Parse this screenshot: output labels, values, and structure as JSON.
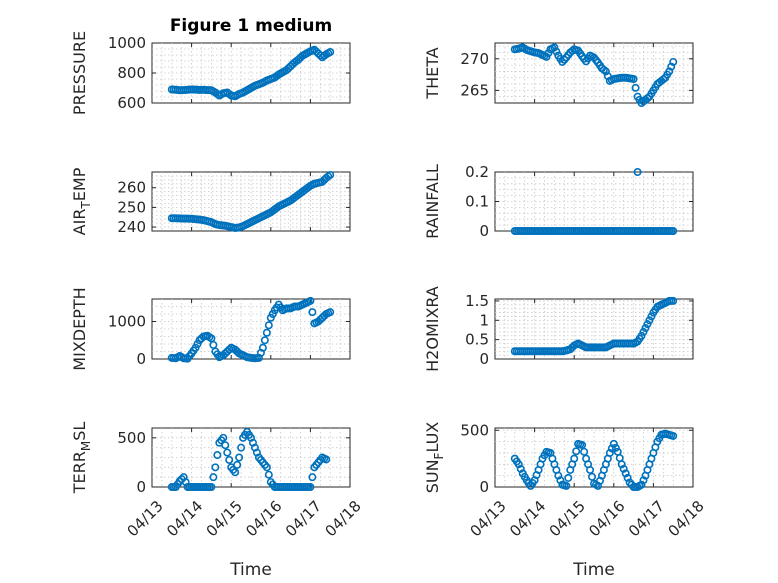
{
  "figure": {
    "title": "Figure 1 medium",
    "xlabel": "Time",
    "marker_color": "#0072BD"
  },
  "chart_data": [
    {
      "id": "pressure",
      "type": "scatter",
      "position": "row1-left",
      "ylabel": "PRESSURE",
      "ylim": [
        600,
        1000
      ],
      "yticks": [
        600,
        800,
        1000
      ],
      "xlim": [
        "04/13",
        "04/18"
      ],
      "xticks": [
        "04/13",
        "04/14",
        "04/15",
        "04/16",
        "04/17",
        "04/18"
      ],
      "grid": true,
      "show_xticklabels": false,
      "x": [
        13.5,
        13.6,
        13.7,
        13.8,
        13.9,
        14.0,
        14.1,
        14.2,
        14.3,
        14.4,
        14.5,
        14.6,
        14.7,
        14.8,
        14.9,
        15.0,
        15.1,
        15.2,
        15.3,
        15.4,
        15.5,
        15.6,
        15.7,
        15.8,
        15.9,
        16.0,
        16.1,
        16.2,
        16.3,
        16.4,
        16.5,
        16.6,
        16.7,
        16.8,
        16.9,
        17.0,
        17.1,
        17.2,
        17.3,
        17.4,
        17.5
      ],
      "y": [
        690,
        688,
        685,
        686,
        688,
        690,
        689,
        687,
        688,
        686,
        685,
        670,
        650,
        665,
        670,
        650,
        645,
        660,
        670,
        685,
        700,
        715,
        725,
        735,
        750,
        760,
        770,
        790,
        805,
        820,
        845,
        870,
        890,
        915,
        930,
        945,
        955,
        930,
        905,
        925,
        940
      ]
    },
    {
      "id": "theta",
      "type": "scatter",
      "position": "row1-right",
      "ylabel": "THETA",
      "ylim": [
        263,
        272.5
      ],
      "yticks": [
        265,
        270
      ],
      "xlim": [
        "04/13",
        "04/18"
      ],
      "xticks": [
        "04/13",
        "04/14",
        "04/15",
        "04/16",
        "04/17",
        "04/18"
      ],
      "grid": true,
      "show_xticklabels": false,
      "x": [
        13.5,
        13.6,
        13.7,
        13.8,
        13.9,
        14.0,
        14.1,
        14.2,
        14.3,
        14.4,
        14.5,
        14.6,
        14.7,
        14.8,
        14.9,
        15.0,
        15.1,
        15.2,
        15.3,
        15.4,
        15.5,
        15.6,
        15.7,
        15.8,
        15.9,
        16.0,
        16.1,
        16.2,
        16.3,
        16.4,
        16.5,
        16.6,
        16.7,
        16.8,
        16.9,
        17.0,
        17.1,
        17.2,
        17.3,
        17.4,
        17.5
      ],
      "y": [
        271.5,
        271.6,
        271.8,
        271.4,
        271.2,
        271.0,
        270.9,
        270.6,
        270.3,
        271.5,
        271.8,
        270.5,
        269.5,
        270.2,
        271.0,
        271.5,
        271.3,
        270.4,
        269.6,
        270.5,
        270.2,
        269.4,
        268.5,
        268.0,
        266.5,
        266.8,
        266.9,
        267.0,
        267.0,
        266.9,
        266.8,
        264.0,
        263.0,
        263.5,
        264.0,
        265.0,
        266.0,
        266.5,
        267.0,
        268.0,
        269.5
      ]
    },
    {
      "id": "air_temp",
      "type": "scatter",
      "position": "row2-left",
      "ylabel": "AIR",
      "ylabel_sub": "T",
      "ylabel_tail": "EMP",
      "ylim": [
        238,
        268
      ],
      "yticks": [
        240,
        250,
        260
      ],
      "xlim": [
        "04/13",
        "04/18"
      ],
      "xticks": [
        "04/13",
        "04/14",
        "04/15",
        "04/16",
        "04/17",
        "04/18"
      ],
      "grid": true,
      "show_xticklabels": false,
      "x": [
        13.5,
        13.6,
        13.7,
        13.8,
        13.9,
        14.0,
        14.1,
        14.2,
        14.3,
        14.4,
        14.5,
        14.6,
        14.7,
        14.8,
        14.9,
        15.0,
        15.1,
        15.2,
        15.3,
        15.4,
        15.5,
        15.6,
        15.7,
        15.8,
        15.9,
        16.0,
        16.1,
        16.2,
        16.3,
        16.4,
        16.5,
        16.6,
        16.7,
        16.8,
        16.9,
        17.0,
        17.1,
        17.2,
        17.3,
        17.4,
        17.5
      ],
      "y": [
        244.5,
        244.5,
        244.4,
        244.3,
        244.3,
        244.2,
        244.0,
        243.8,
        243.5,
        243.0,
        242.5,
        241.5,
        241.0,
        240.8,
        240.5,
        240.0,
        239.5,
        239.8,
        240.5,
        241.5,
        242.5,
        243.5,
        244.5,
        245.5,
        246.5,
        247.5,
        249.0,
        250.5,
        251.5,
        252.5,
        253.5,
        255.0,
        256.5,
        258.0,
        259.5,
        261.0,
        262.0,
        262.5,
        263.0,
        265.0,
        266.5
      ]
    },
    {
      "id": "rainfall",
      "type": "scatter",
      "position": "row2-right",
      "ylabel": "RAINFALL",
      "ylim": [
        0,
        0.2
      ],
      "yticks": [
        0,
        0.1,
        0.2
      ],
      "xlim": [
        "04/13",
        "04/18"
      ],
      "xticks": [
        "04/13",
        "04/14",
        "04/15",
        "04/16",
        "04/17",
        "04/18"
      ],
      "grid": true,
      "show_xticklabels": false,
      "x": [
        13.5,
        13.6,
        13.7,
        13.8,
        13.9,
        14.0,
        14.1,
        14.2,
        14.3,
        14.4,
        14.5,
        14.6,
        14.7,
        14.8,
        14.9,
        15.0,
        15.1,
        15.2,
        15.3,
        15.4,
        15.5,
        15.6,
        15.7,
        15.8,
        15.9,
        16.0,
        16.1,
        16.2,
        16.3,
        16.4,
        16.5,
        16.6,
        16.7,
        16.8,
        16.9,
        17.0,
        17.1,
        17.2,
        17.3,
        17.4,
        17.5,
        16.6
      ],
      "y": [
        0,
        0,
        0,
        0,
        0,
        0,
        0,
        0,
        0,
        0,
        0,
        0,
        0,
        0,
        0,
        0,
        0,
        0,
        0,
        0,
        0,
        0,
        0,
        0,
        0,
        0,
        0,
        0,
        0,
        0,
        0,
        0,
        0,
        0,
        0,
        0,
        0,
        0,
        0,
        0,
        0,
        0.2
      ]
    },
    {
      "id": "mixdepth",
      "type": "scatter",
      "position": "row3-left",
      "ylabel": "MIXDEPTH",
      "ylim": [
        0,
        1600
      ],
      "yticks": [
        0,
        1000
      ],
      "xlim": [
        "04/13",
        "04/18"
      ],
      "xticks": [
        "04/13",
        "04/14",
        "04/15",
        "04/16",
        "04/17",
        "04/18"
      ],
      "grid": true,
      "show_xticklabels": false,
      "x": [
        13.5,
        13.6,
        13.7,
        13.8,
        13.9,
        14.0,
        14.1,
        14.2,
        14.3,
        14.4,
        14.5,
        14.6,
        14.7,
        14.8,
        14.9,
        15.0,
        15.1,
        15.2,
        15.3,
        15.4,
        15.5,
        15.6,
        15.7,
        15.8,
        15.9,
        16.0,
        16.1,
        16.2,
        16.3,
        16.4,
        16.5,
        16.6,
        16.7,
        16.8,
        16.9,
        17.0,
        17.1,
        17.2,
        17.3,
        17.4,
        17.5
      ],
      "y": [
        30,
        20,
        80,
        20,
        10,
        150,
        300,
        500,
        600,
        620,
        550,
        200,
        50,
        100,
        200,
        300,
        250,
        150,
        100,
        50,
        30,
        20,
        30,
        300,
        700,
        1100,
        1300,
        1450,
        1300,
        1350,
        1350,
        1400,
        1400,
        1450,
        1500,
        1550,
        950,
        1000,
        1100,
        1200,
        1250
      ]
    },
    {
      "id": "h2omixra",
      "type": "scatter",
      "position": "row3-right",
      "ylabel": "H2OMIXRA",
      "ylim": [
        0,
        1.55
      ],
      "yticks": [
        0,
        0.5,
        1,
        1.5
      ],
      "xlim": [
        "04/13",
        "04/18"
      ],
      "xticks": [
        "04/13",
        "04/14",
        "04/15",
        "04/16",
        "04/17",
        "04/18"
      ],
      "grid": true,
      "show_xticklabels": false,
      "x": [
        13.5,
        13.6,
        13.7,
        13.8,
        13.9,
        14.0,
        14.1,
        14.2,
        14.3,
        14.4,
        14.5,
        14.6,
        14.7,
        14.8,
        14.9,
        15.0,
        15.1,
        15.2,
        15.3,
        15.4,
        15.5,
        15.6,
        15.7,
        15.8,
        15.9,
        16.0,
        16.1,
        16.2,
        16.3,
        16.4,
        16.5,
        16.6,
        16.7,
        16.8,
        16.9,
        17.0,
        17.1,
        17.2,
        17.3,
        17.4,
        17.5
      ],
      "y": [
        0.2,
        0.2,
        0.2,
        0.2,
        0.2,
        0.2,
        0.2,
        0.2,
        0.2,
        0.2,
        0.2,
        0.2,
        0.2,
        0.22,
        0.25,
        0.35,
        0.4,
        0.35,
        0.3,
        0.3,
        0.3,
        0.3,
        0.3,
        0.3,
        0.35,
        0.4,
        0.4,
        0.4,
        0.4,
        0.4,
        0.4,
        0.45,
        0.6,
        0.8,
        1.0,
        1.2,
        1.35,
        1.4,
        1.45,
        1.5,
        1.5
      ]
    },
    {
      "id": "terr_msl",
      "type": "scatter",
      "position": "row4-left",
      "ylabel": "TERR",
      "ylabel_sub": "M",
      "ylabel_tail": "SL",
      "ylim": [
        0,
        600
      ],
      "yticks": [
        0,
        500
      ],
      "xlim": [
        "04/13",
        "04/18"
      ],
      "xticks": [
        "04/13",
        "04/14",
        "04/15",
        "04/16",
        "04/17",
        "04/18"
      ],
      "grid": true,
      "show_xticklabels": true,
      "x": [
        13.5,
        13.6,
        13.7,
        13.8,
        13.9,
        14.0,
        14.1,
        14.2,
        14.3,
        14.4,
        14.5,
        14.6,
        14.7,
        14.8,
        14.9,
        15.0,
        15.1,
        15.2,
        15.3,
        15.4,
        15.5,
        15.6,
        15.7,
        15.8,
        15.9,
        16.0,
        16.1,
        16.2,
        16.3,
        16.4,
        16.5,
        16.6,
        16.7,
        16.8,
        16.9,
        17.0,
        17.1,
        17.2,
        17.3,
        17.4
      ],
      "y": [
        0,
        0,
        60,
        100,
        0,
        0,
        0,
        0,
        0,
        0,
        0,
        200,
        450,
        500,
        350,
        200,
        150,
        300,
        500,
        560,
        500,
        400,
        300,
        250,
        200,
        50,
        0,
        0,
        0,
        0,
        0,
        0,
        0,
        0,
        0,
        0,
        200,
        250,
        300,
        280
      ]
    },
    {
      "id": "sun_flux",
      "type": "scatter",
      "position": "row4-right",
      "ylabel": "SUN",
      "ylabel_sub": "F",
      "ylabel_tail": "LUX",
      "ylim": [
        0,
        520
      ],
      "yticks": [
        0,
        500
      ],
      "xlim": [
        "04/13",
        "04/18"
      ],
      "xticks": [
        "04/13",
        "04/14",
        "04/15",
        "04/16",
        "04/17",
        "04/18"
      ],
      "grid": true,
      "show_xticklabels": true,
      "x": [
        13.5,
        13.6,
        13.7,
        13.8,
        13.9,
        14.0,
        14.1,
        14.2,
        14.3,
        14.4,
        14.5,
        14.6,
        14.7,
        14.8,
        14.9,
        15.0,
        15.1,
        15.2,
        15.3,
        15.4,
        15.5,
        15.6,
        15.7,
        15.8,
        15.9,
        16.0,
        16.1,
        16.2,
        16.3,
        16.4,
        16.5,
        16.6,
        16.7,
        16.8,
        16.9,
        17.0,
        17.1,
        17.2,
        17.3,
        17.4,
        17.5
      ],
      "y": [
        250,
        200,
        120,
        60,
        10,
        60,
        150,
        250,
        310,
        300,
        200,
        100,
        20,
        10,
        150,
        250,
        380,
        370,
        250,
        150,
        30,
        10,
        100,
        200,
        300,
        380,
        310,
        200,
        120,
        40,
        0,
        0,
        20,
        100,
        200,
        300,
        400,
        460,
        470,
        460,
        450
      ]
    }
  ]
}
